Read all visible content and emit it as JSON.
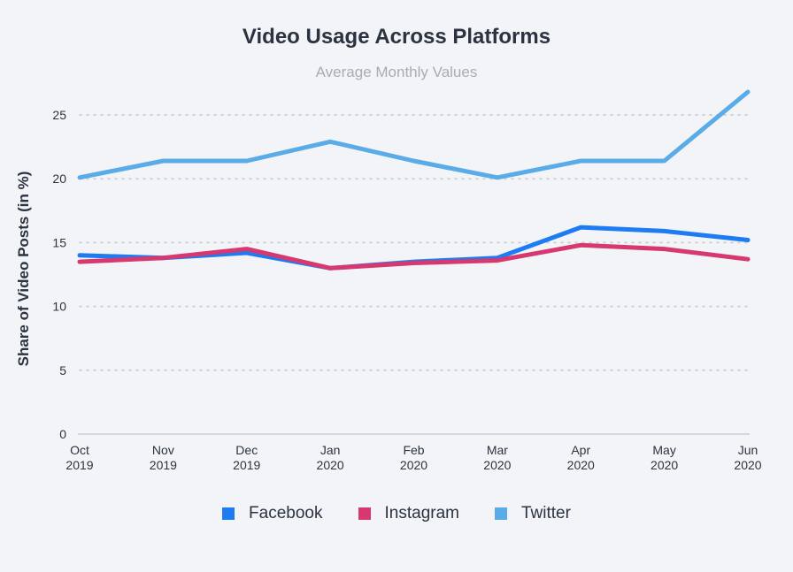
{
  "chart_data": {
    "type": "line",
    "title": "Video Usage Across Platforms",
    "subtitle": "Average Monthly Values",
    "ylabel": "Share of Video Posts (in %)",
    "xlabel": "",
    "ylim": [
      0,
      27
    ],
    "yticks": [
      0,
      5,
      10,
      15,
      20,
      25
    ],
    "grid": true,
    "legend_position": "bottom",
    "categories": [
      [
        "Oct",
        "2019"
      ],
      [
        "Nov",
        "2019"
      ],
      [
        "Dec",
        "2019"
      ],
      [
        "Jan",
        "2020"
      ],
      [
        "Feb",
        "2020"
      ],
      [
        "Mar",
        "2020"
      ],
      [
        "Apr",
        "2020"
      ],
      [
        "May",
        "2020"
      ],
      [
        "Jun",
        "2020"
      ]
    ],
    "series": [
      {
        "name": "Twitter",
        "color": "#5aace8",
        "values": [
          20.1,
          21.4,
          21.4,
          22.9,
          21.4,
          20.1,
          21.4,
          21.4,
          26.8
        ]
      },
      {
        "name": "Facebook",
        "color": "#1d7cf2",
        "values": [
          14.0,
          13.8,
          14.2,
          13.0,
          13.5,
          13.8,
          16.2,
          15.9,
          15.2
        ]
      },
      {
        "name": "Instagram",
        "color": "#d6386f",
        "values": [
          13.5,
          13.8,
          14.5,
          13.0,
          13.4,
          13.6,
          14.8,
          14.5,
          13.7
        ]
      }
    ],
    "legend_order": [
      "Facebook",
      "Instagram",
      "Twitter"
    ]
  }
}
